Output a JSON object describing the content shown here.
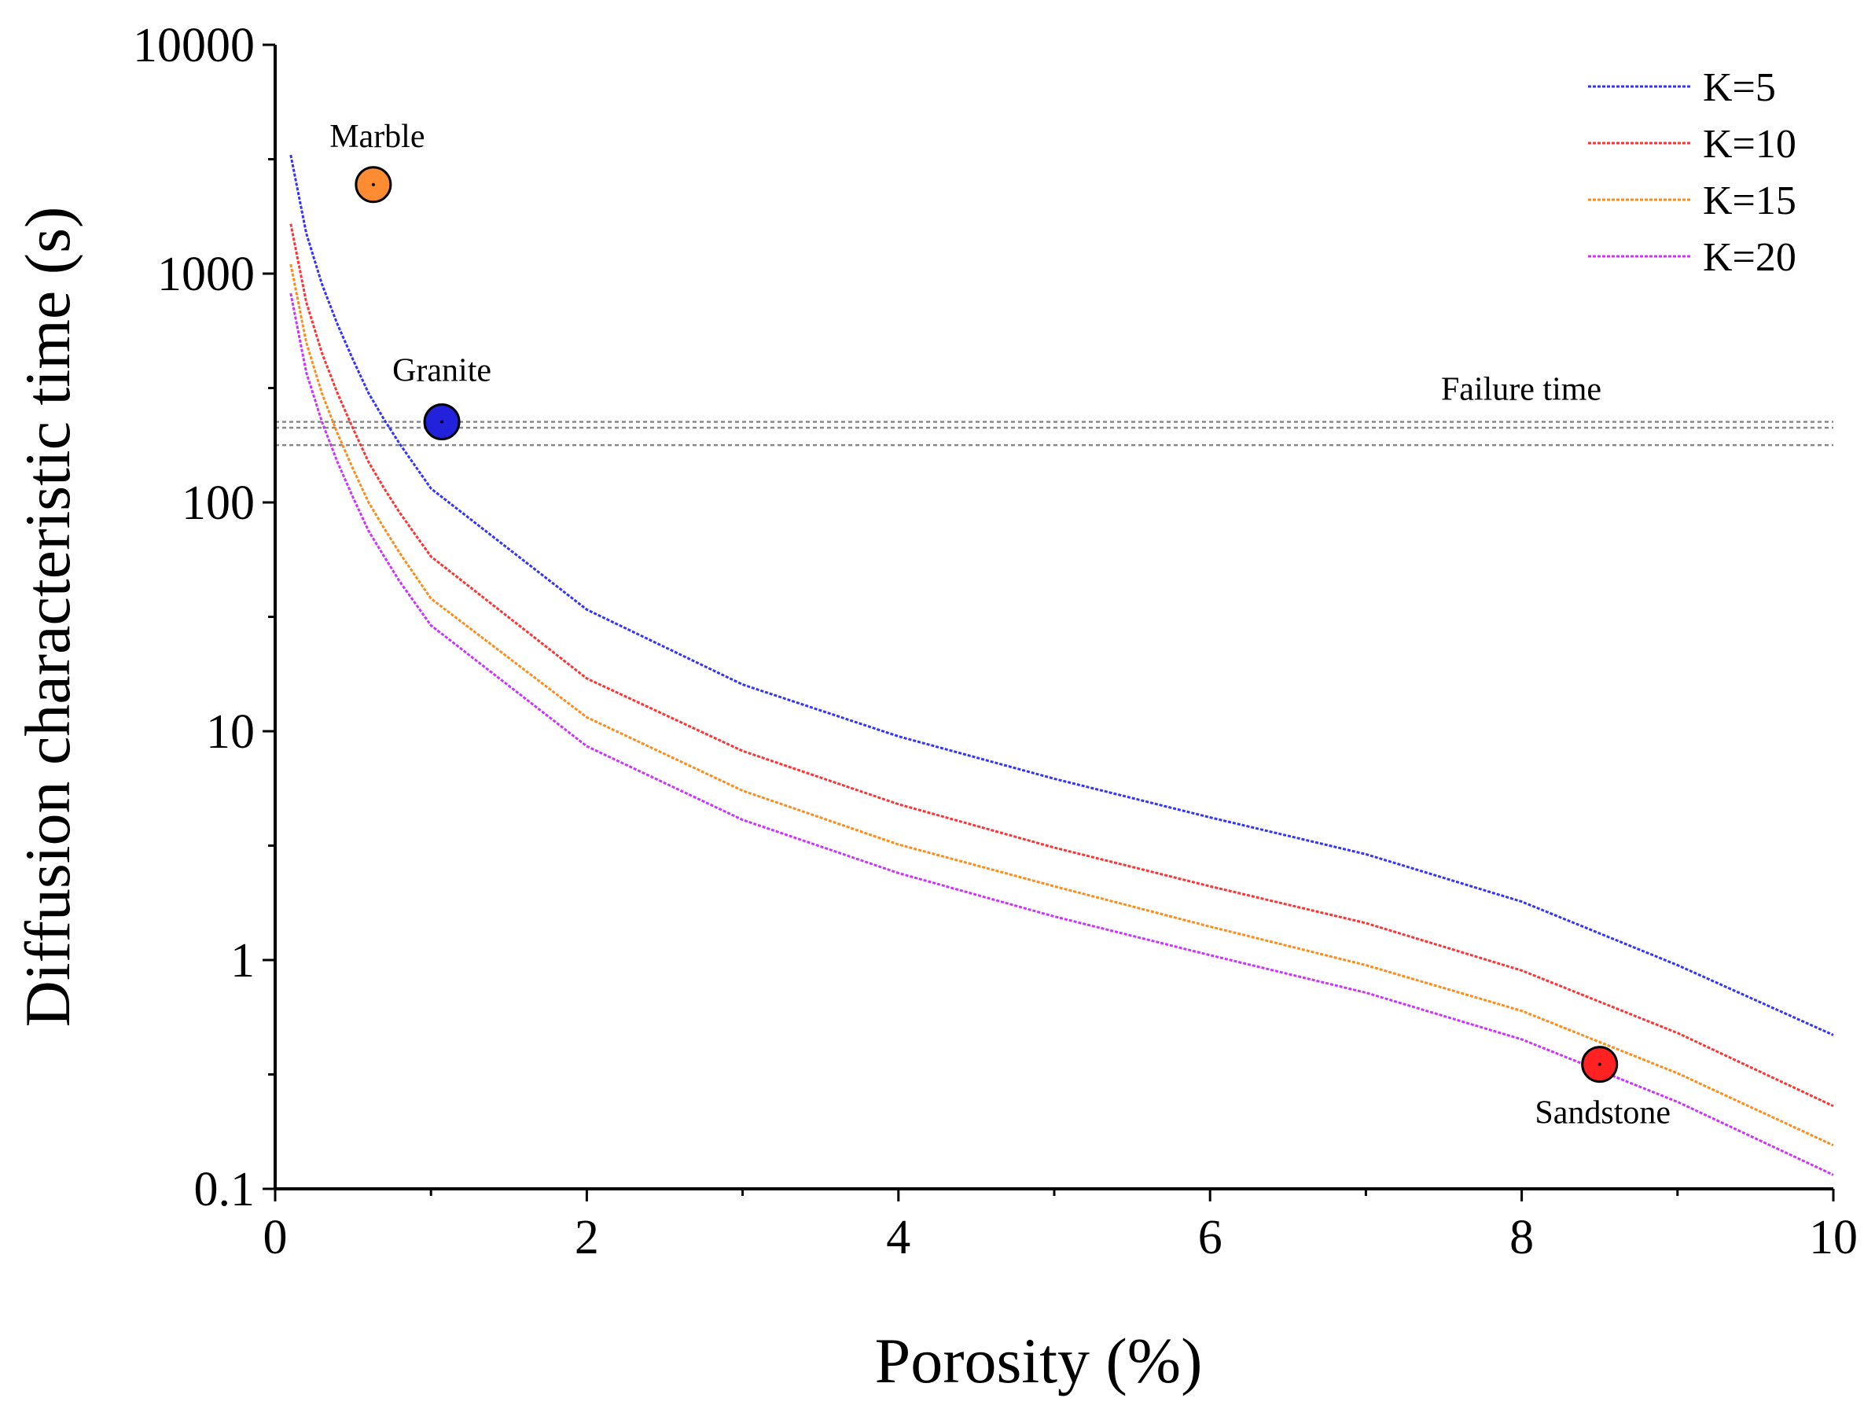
{
  "chart_data": {
    "type": "line",
    "title": "",
    "xlabel": "Porosity (%)",
    "ylabel": "Diffusion characteristic time (s)",
    "xlim": [
      0,
      10
    ],
    "ylim": [
      0.1,
      10000
    ],
    "yscale": "log",
    "x_ticks": [
      "0",
      "2",
      "4",
      "6",
      "8",
      "10"
    ],
    "y_ticks": [
      "0.1",
      "1",
      "10",
      "100",
      "1000",
      "10000"
    ],
    "legend_position": "top-right",
    "grid": false,
    "series": [
      {
        "name": "K=5",
        "color": "#3333ff",
        "x": [
          0.1,
          0.2,
          0.3,
          0.4,
          0.5,
          0.6,
          0.7,
          0.8,
          1,
          2,
          3,
          4,
          5,
          6,
          7,
          8,
          9,
          10
        ],
        "y": [
          3300,
          1500,
          900,
          600,
          420,
          300,
          230,
          180,
          115,
          34,
          16,
          9.5,
          6.2,
          4.2,
          2.9,
          1.8,
          0.95,
          0.47
        ]
      },
      {
        "name": "K=10",
        "color": "#ff3333",
        "x": [
          0.1,
          0.2,
          0.3,
          0.4,
          0.5,
          0.6,
          0.7,
          0.8,
          1,
          2,
          3,
          4,
          5,
          6,
          7,
          8,
          9,
          10
        ],
        "y": [
          1650,
          750,
          450,
          300,
          210,
          150,
          115,
          90,
          58,
          17,
          8.2,
          4.8,
          3.1,
          2.1,
          1.45,
          0.9,
          0.48,
          0.23
        ]
      },
      {
        "name": "K=15",
        "color": "#ff8c1a",
        "x": [
          0.1,
          0.2,
          0.3,
          0.4,
          0.5,
          0.6,
          0.7,
          0.8,
          1,
          2,
          3,
          4,
          5,
          6,
          7,
          8,
          9,
          10
        ],
        "y": [
          1100,
          500,
          300,
          200,
          140,
          100,
          77,
          60,
          38,
          11.5,
          5.5,
          3.2,
          2.1,
          1.4,
          0.95,
          0.6,
          0.32,
          0.155
        ]
      },
      {
        "name": "K=20",
        "color": "#cc33ff",
        "x": [
          0.1,
          0.2,
          0.3,
          0.4,
          0.5,
          0.6,
          0.7,
          0.8,
          1,
          2,
          3,
          4,
          5,
          6,
          7,
          8,
          9,
          10
        ],
        "y": [
          820,
          370,
          225,
          150,
          105,
          75,
          58,
          45,
          29,
          8.6,
          4.1,
          2.4,
          1.55,
          1.05,
          0.72,
          0.45,
          0.24,
          0.115
        ]
      }
    ],
    "points": [
      {
        "label": "Marble",
        "x": 0.63,
        "y": 2450,
        "color": "#ff8c33"
      },
      {
        "label": "Granite",
        "x": 1.07,
        "y": 225,
        "color": "#2222dd"
      },
      {
        "label": "Sandstone",
        "x": 8.5,
        "y": 0.35,
        "color": "#ff2222"
      }
    ],
    "reference_band": {
      "label": "Failure time",
      "values": [
        225,
        212,
        178
      ],
      "color": "#888888"
    }
  }
}
